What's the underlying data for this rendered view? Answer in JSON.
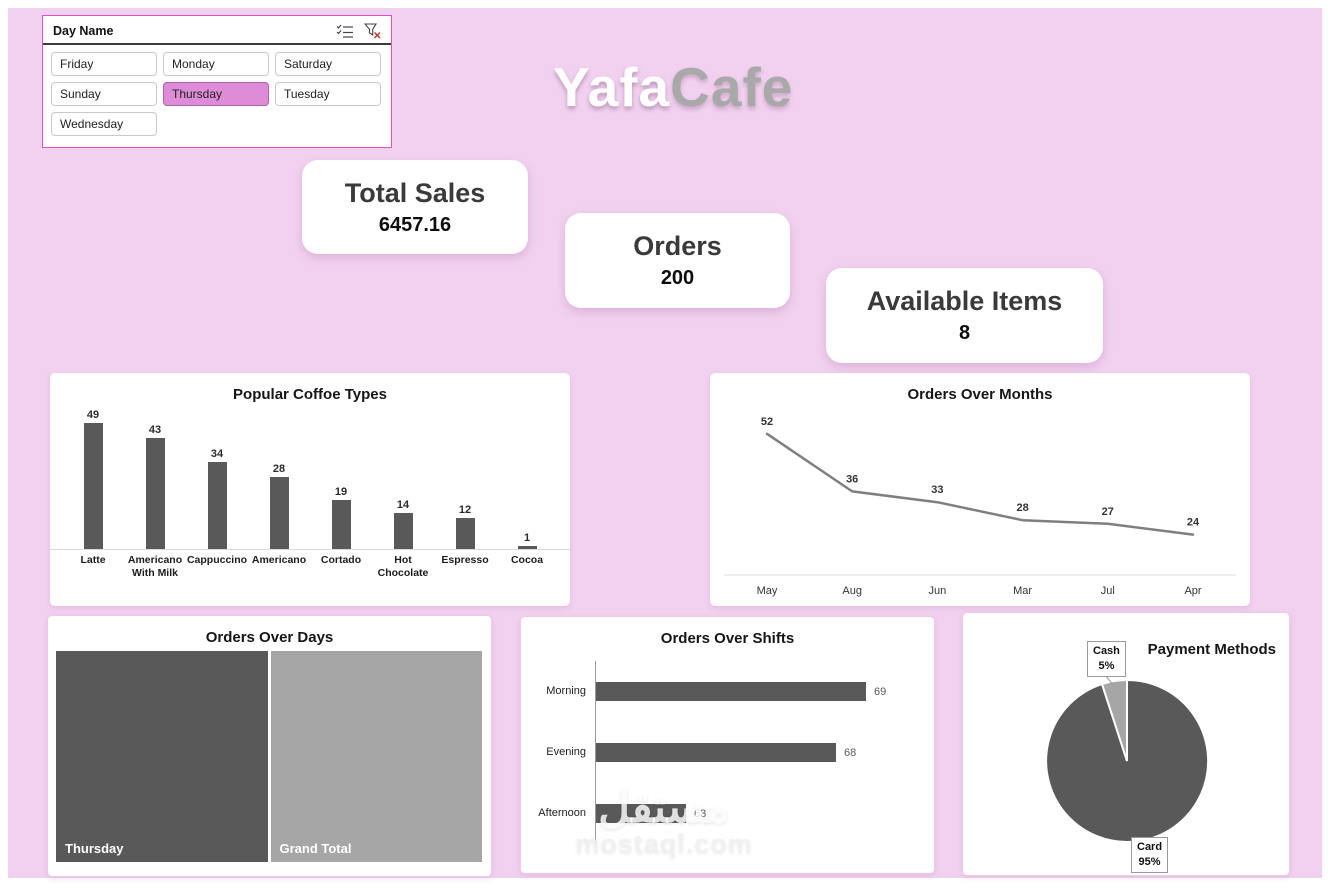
{
  "app": {
    "background_color": "#f2d1f0",
    "accent_color": "#de8cd8",
    "watermark_arabic": "مستقل",
    "watermark_latin": "mostaql.com"
  },
  "logo": {
    "part1": "Yafa",
    "part2": "Cafe"
  },
  "slicer": {
    "title": "Day Name",
    "icons": [
      "select-all-icon",
      "clear-filter-icon"
    ],
    "days": [
      {
        "label": "Friday",
        "selected": false
      },
      {
        "label": "Monday",
        "selected": false
      },
      {
        "label": "Saturday",
        "selected": false
      },
      {
        "label": "Sunday",
        "selected": false
      },
      {
        "label": "Thursday",
        "selected": true
      },
      {
        "label": "Tuesday",
        "selected": false
      },
      {
        "label": "Wednesday",
        "selected": false
      }
    ]
  },
  "kpis": [
    {
      "title": "Total Sales",
      "value": "6457.16"
    },
    {
      "title": "Orders",
      "value": "200"
    },
    {
      "title": "Available Items",
      "value": "8"
    }
  ],
  "chart_data": [
    {
      "type": "bar",
      "title": "Popular Coffoe Types",
      "categories": [
        "Latte",
        "Americano With Milk",
        "Cappuccino",
        "Americano",
        "Cortado",
        "Hot Chocolate",
        "Espresso",
        "Cocoa"
      ],
      "values": [
        49,
        43,
        34,
        28,
        19,
        14,
        12,
        1
      ],
      "bar_color": "#595959",
      "ylim": [
        0,
        55
      ],
      "grid": false,
      "data_labels": true
    },
    {
      "type": "line",
      "title": "Orders Over Months",
      "categories": [
        "May",
        "Aug",
        "Jun",
        "Mar",
        "Jul",
        "Apr"
      ],
      "values": [
        52,
        36,
        33,
        28,
        27,
        24
      ],
      "line_color": "#7f7f7f",
      "ylim": [
        20,
        55
      ],
      "grid": false,
      "data_labels": true
    },
    {
      "type": "treemap",
      "title": "Orders Over Days",
      "items": [
        {
          "label": "Thursday",
          "value": 1,
          "color": "#595959"
        },
        {
          "label": "Grand Total",
          "value": 1,
          "color": "#a6a6a6"
        }
      ]
    },
    {
      "type": "hbar",
      "title": "Orders Over Shifts",
      "categories": [
        "Morning",
        "Evening",
        "Afternoon"
      ],
      "values": [
        69,
        68,
        63
      ],
      "bar_color": "#595959",
      "xlim": [
        60,
        70
      ],
      "data_labels": true
    },
    {
      "type": "pie",
      "title": "Payment Methods",
      "slices": [
        {
          "label": "Card",
          "pct": 95,
          "color": "#595959"
        },
        {
          "label": "Cash",
          "pct": 5,
          "color": "#a6a6a6"
        }
      ],
      "legend": "callout-labels"
    }
  ]
}
